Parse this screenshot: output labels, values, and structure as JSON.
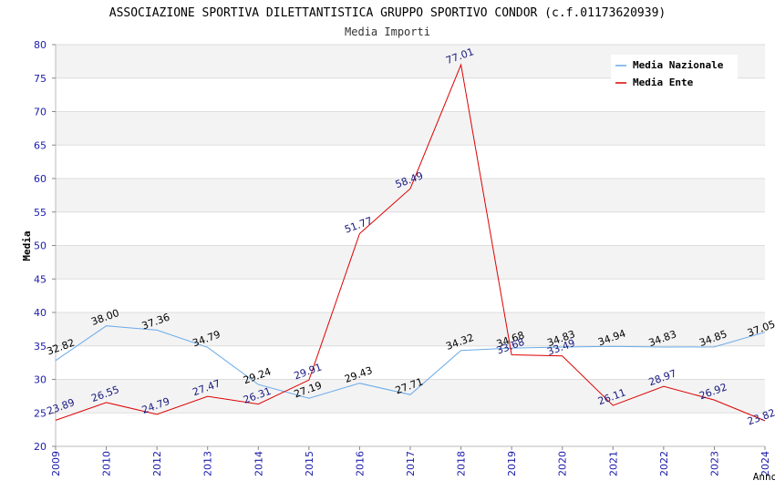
{
  "chart_data": {
    "type": "line",
    "title": "ASSOCIAZIONE SPORTIVA DILETTANTISTICA GRUPPO SPORTIVO CONDOR (c.f.01173620939)",
    "subtitle": "Media Importi",
    "xlabel": "Anno",
    "ylabel": "Media",
    "ylim": [
      20,
      80
    ],
    "yticks": [
      20,
      25,
      30,
      35,
      40,
      45,
      50,
      55,
      60,
      65,
      70,
      75,
      80
    ],
    "categories": [
      "2009",
      "2010",
      "2012",
      "2013",
      "2014",
      "2015",
      "2016",
      "2017",
      "2018",
      "2019",
      "2020",
      "2021",
      "2022",
      "2023",
      "2024"
    ],
    "series": [
      {
        "name": "Media Nazionale",
        "color": "#6aaae8",
        "values": [
          32.82,
          38.0,
          37.36,
          34.79,
          29.24,
          27.19,
          29.43,
          27.71,
          34.32,
          34.68,
          34.83,
          34.94,
          34.83,
          34.85,
          37.05
        ],
        "labels": [
          "32.82",
          "38.00",
          "37.36",
          "34.79",
          "29.24",
          "27.19",
          "29.43",
          "27.71",
          "34.32",
          "34.68",
          "34.83",
          "34.94",
          "34.83",
          "34.85",
          "37.05"
        ]
      },
      {
        "name": "Media Ente",
        "color": "#dd0000",
        "values": [
          23.89,
          26.55,
          24.79,
          27.47,
          26.31,
          29.91,
          51.77,
          58.49,
          77.01,
          33.68,
          33.49,
          26.11,
          28.97,
          26.92,
          23.82
        ],
        "labels": [
          "23.89",
          "26.55",
          "24.79",
          "27.47",
          "26.31",
          "29.91",
          "51.77",
          "58.49",
          "77.01",
          "33.68",
          "33.49",
          "26.11",
          "28.97",
          "26.92",
          "23.82"
        ]
      }
    ],
    "grid": true,
    "legend_position": "top-right"
  }
}
